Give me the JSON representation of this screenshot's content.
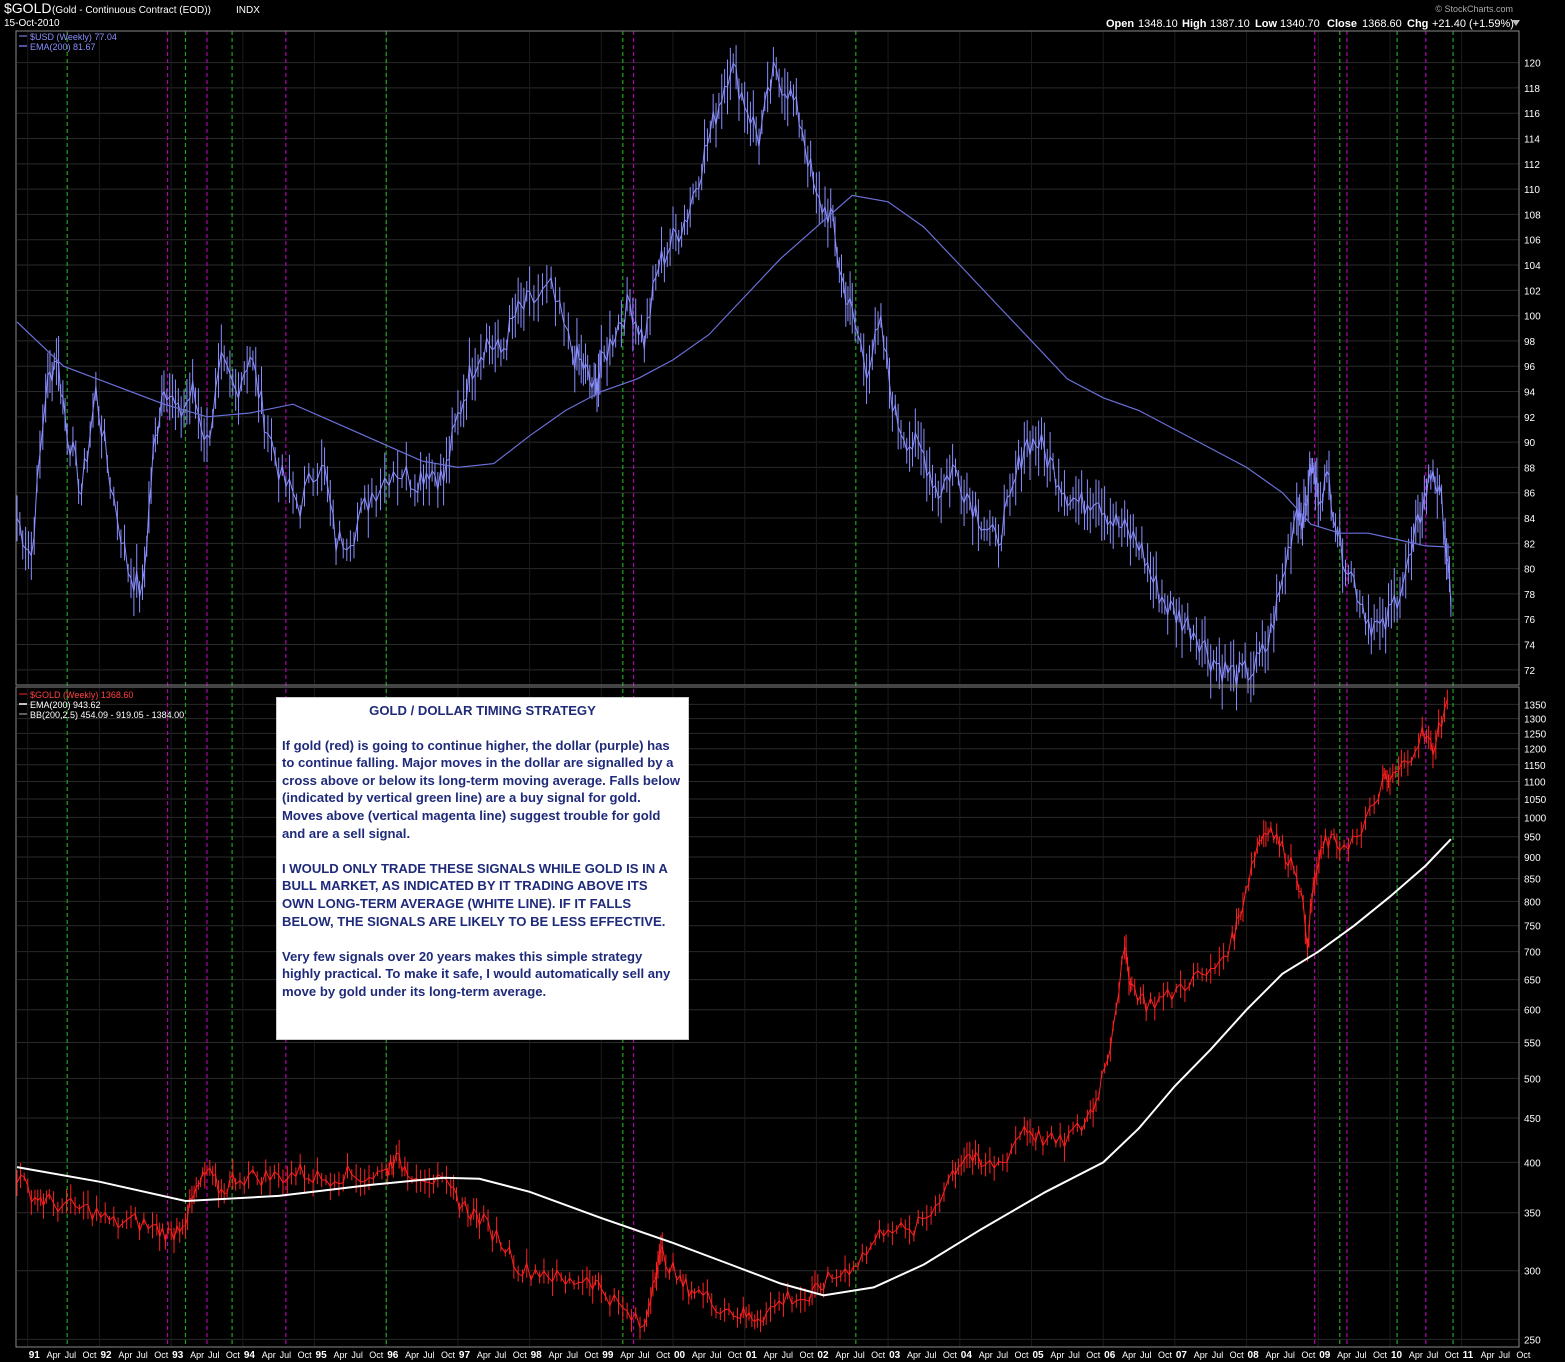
{
  "header": {
    "symbol": "$GOLD",
    "description": "(Gold - Continuous Contract (EOD))",
    "exchange": "INDX",
    "date": "15-Oct-2010",
    "watermark": "© StockCharts.com",
    "open_label": "Open",
    "open": "1348.10",
    "high_label": "High",
    "high": "1387.10",
    "low_label": "Low",
    "low": "1340.70",
    "close_label": "Close",
    "close": "1368.60",
    "chg_label": "Chg",
    "chg": "+21.40 (+1.59%)"
  },
  "colors": {
    "usd": "#8a8fff",
    "usd_ema": "#6b6fd8",
    "gold": "#ff2020",
    "gold_ema": "#ffffff",
    "buy_signal": "#1fa51f",
    "sell_signal": "#b000b0",
    "grid": "#2a2a2a"
  },
  "note": {
    "title": "GOLD / DOLLAR TIMING STRATEGY",
    "p1": "If gold (red) is going to continue higher, the dollar (purple) has to continue falling.  Major moves in the dollar are signalled by a cross above or below its long-term moving average.  Falls below (indicated by vertical green line) are a buy signal for gold.  Moves above (vertical magenta line) suggest trouble for gold and are a sell signal.",
    "p2": "I WOULD ONLY TRADE THESE SIGNALS WHILE GOLD IS IN A BULL MARKET, AS INDICATED BY IT TRADING ABOVE ITS OWN LONG-TERM AVERAGE (WHITE LINE).  IF IT FALLS BELOW, THE SIGNALS ARE LIKELY TO BE LESS EFFECTIVE.",
    "p3": "Very few signals over 20 years makes this simple strategy highly practical.  To make it safe, I would automatically sell any move by gold under its long-term average."
  },
  "chart_data": [
    {
      "type": "line",
      "panel": "top",
      "legend": [
        "$USD (Weekly) 77.04",
        "EMA(200) 81.67"
      ],
      "y_ticks": [
        72,
        74,
        76,
        78,
        80,
        82,
        84,
        86,
        88,
        90,
        92,
        94,
        96,
        98,
        100,
        102,
        104,
        106,
        108,
        110,
        112,
        114,
        116,
        118,
        120
      ],
      "ylim": [
        70.8,
        122.5
      ],
      "xlim": [
        1990.85,
        2011.8
      ],
      "series": [
        {
          "name": "$USD (Weekly)",
          "x": [
            1990.85,
            1991.05,
            1991.25,
            1991.4,
            1991.55,
            1991.75,
            1991.95,
            1992.15,
            1992.4,
            1992.6,
            1992.75,
            1992.9,
            1993.1,
            1993.3,
            1993.5,
            1993.7,
            1993.9,
            1994.1,
            1994.3,
            1994.55,
            1994.8,
            1995.1,
            1995.3,
            1995.55,
            1995.8,
            1996.1,
            1996.4,
            1996.6,
            1996.8,
            1997.0,
            1997.2,
            1997.4,
            1997.6,
            1997.8,
            1998.0,
            1998.3,
            1998.6,
            1998.75,
            1998.9,
            1999.0,
            1999.2,
            1999.4,
            1999.6,
            1999.8,
            2000.0,
            2000.2,
            2000.4,
            2000.6,
            2000.8,
            2001.0,
            2001.2,
            2001.4,
            2001.6,
            2001.8,
            2002.0,
            2002.2,
            2002.35,
            2002.5,
            2002.7,
            2002.9,
            2003.1,
            2003.3,
            2003.5,
            2003.7,
            2003.9,
            2004.1,
            2004.3,
            2004.5,
            2004.7,
            2004.9,
            2005.1,
            2005.3,
            2005.5,
            2005.7,
            2005.9,
            2006.1,
            2006.3,
            2006.5,
            2006.7,
            2006.9,
            2007.1,
            2007.3,
            2007.5,
            2007.7,
            2007.9,
            2008.1,
            2008.3,
            2008.5,
            2008.7,
            2008.8,
            2008.9,
            2009.0,
            2009.15,
            2009.3,
            2009.5,
            2009.7,
            2009.9,
            2010.1,
            2010.3,
            2010.45,
            2010.6,
            2010.75,
            2010.85
          ],
          "y": [
            84,
            81,
            94,
            97,
            91,
            86,
            94,
            87,
            80,
            78,
            89,
            95,
            92,
            94,
            90,
            96,
            94,
            97,
            92,
            87,
            85,
            89,
            82,
            83,
            86,
            88,
            87,
            88,
            87,
            92,
            96,
            98,
            97,
            100,
            101,
            102,
            97,
            96,
            94,
            96,
            99,
            101,
            98,
            104,
            106,
            108,
            112,
            116,
            120,
            117,
            114,
            119,
            118,
            115,
            109,
            108,
            103,
            100,
            96,
            99,
            92,
            90,
            89,
            86,
            88,
            86,
            84,
            82,
            85,
            90,
            90,
            88,
            86,
            85,
            86,
            84,
            83,
            82,
            79,
            77,
            76,
            75,
            73,
            72,
            71.5,
            72,
            74,
            79,
            85,
            84,
            88,
            86,
            87,
            82,
            79,
            76,
            75,
            78,
            81,
            85,
            88,
            84,
            77
          ]
        },
        {
          "name": "EMA(200)",
          "x": [
            1990.85,
            1991.5,
            1992.2,
            1992.9,
            1993.5,
            1994.1,
            1994.7,
            1995.3,
            1995.9,
            1996.5,
            1997.0,
            1997.5,
            1998.0,
            1998.5,
            1999.0,
            1999.5,
            2000.0,
            2000.5,
            2001.0,
            2001.5,
            2002.0,
            2002.5,
            2003.0,
            2003.5,
            2004.0,
            2004.5,
            2005.0,
            2005.5,
            2006.0,
            2006.5,
            2007.0,
            2007.5,
            2008.0,
            2008.5,
            2008.9,
            2009.3,
            2009.7,
            2010.1,
            2010.5,
            2010.85
          ],
          "y": [
            99.5,
            96,
            94.5,
            93,
            92,
            92.3,
            93,
            91.5,
            90,
            88.5,
            88,
            88.3,
            90.5,
            92.5,
            94,
            95,
            96.5,
            98.5,
            101.5,
            104.5,
            107,
            109.5,
            109,
            107,
            104,
            101,
            98,
            95,
            93.5,
            92.5,
            91,
            89.5,
            88,
            86,
            83.5,
            82.8,
            82.8,
            82.3,
            81.8,
            81.7
          ]
        }
      ],
      "buy_signals": [
        1991.55,
        1993.2,
        1993.85,
        1996.0,
        1999.3,
        2002.55,
        2009.3,
        2010.1,
        2010.88
      ],
      "sell_signals": [
        1992.95,
        1993.5,
        1994.6,
        1999.45,
        2008.95,
        2009.4,
        2010.5
      ]
    },
    {
      "type": "line",
      "panel": "bottom",
      "yscale": "log",
      "legend": [
        "$GOLD (Weekly) 1368.60",
        "EMA(200) 943.62",
        "BB(200,2.5) 454.09 - 919.05 - 1384.00"
      ],
      "y_ticks": [
        250,
        300,
        350,
        400,
        450,
        500,
        550,
        600,
        650,
        700,
        750,
        800,
        850,
        900,
        950,
        1000,
        1050,
        1100,
        1150,
        1200,
        1250,
        1300,
        1350
      ],
      "ylim": [
        245,
        1410
      ],
      "xlim": [
        1990.85,
        2011.8
      ],
      "x_axis_labels": [
        {
          "x": 1991.0,
          "t": "91"
        },
        {
          "x": 1991.25,
          "t": "Apr"
        },
        {
          "x": 1991.5,
          "t": "Jul"
        },
        {
          "x": 1991.75,
          "t": "Oct"
        },
        {
          "x": 1992.0,
          "t": "92"
        },
        {
          "x": 1992.25,
          "t": "Apr"
        },
        {
          "x": 1992.5,
          "t": "Jul"
        },
        {
          "x": 1992.75,
          "t": "Oct"
        },
        {
          "x": 1993.0,
          "t": "93"
        },
        {
          "x": 1993.25,
          "t": "Apr"
        },
        {
          "x": 1993.5,
          "t": "Jul"
        },
        {
          "x": 1993.75,
          "t": "Oct"
        },
        {
          "x": 1994.0,
          "t": "94"
        },
        {
          "x": 1994.25,
          "t": "Apr"
        },
        {
          "x": 1994.5,
          "t": "Jul"
        },
        {
          "x": 1994.75,
          "t": "Oct"
        },
        {
          "x": 1995.0,
          "t": "95"
        },
        {
          "x": 1995.25,
          "t": "Apr"
        },
        {
          "x": 1995.5,
          "t": "Jul"
        },
        {
          "x": 1995.75,
          "t": "Oct"
        },
        {
          "x": 1996.0,
          "t": "96"
        },
        {
          "x": 1996.25,
          "t": "Apr"
        },
        {
          "x": 1996.5,
          "t": "Jul"
        },
        {
          "x": 1996.75,
          "t": "Oct"
        },
        {
          "x": 1997.0,
          "t": "97"
        },
        {
          "x": 1997.25,
          "t": "Apr"
        },
        {
          "x": 1997.5,
          "t": "Jul"
        },
        {
          "x": 1997.75,
          "t": "Oct"
        },
        {
          "x": 1998.0,
          "t": "98"
        },
        {
          "x": 1998.25,
          "t": "Apr"
        },
        {
          "x": 1998.5,
          "t": "Jul"
        },
        {
          "x": 1998.75,
          "t": "Oct"
        },
        {
          "x": 1999.0,
          "t": "99"
        },
        {
          "x": 1999.25,
          "t": "Apr"
        },
        {
          "x": 1999.5,
          "t": "Jul"
        },
        {
          "x": 1999.75,
          "t": "Oct"
        },
        {
          "x": 2000.0,
          "t": "00"
        },
        {
          "x": 2000.25,
          "t": "Apr"
        },
        {
          "x": 2000.5,
          "t": "Jul"
        },
        {
          "x": 2000.75,
          "t": "Oct"
        },
        {
          "x": 2001.0,
          "t": "01"
        },
        {
          "x": 2001.25,
          "t": "Apr"
        },
        {
          "x": 2001.5,
          "t": "Jul"
        },
        {
          "x": 2001.75,
          "t": "Oct"
        },
        {
          "x": 2002.0,
          "t": "02"
        },
        {
          "x": 2002.25,
          "t": "Apr"
        },
        {
          "x": 2002.5,
          "t": "Jul"
        },
        {
          "x": 2002.75,
          "t": "Oct"
        },
        {
          "x": 2003.0,
          "t": "03"
        },
        {
          "x": 2003.25,
          "t": "Apr"
        },
        {
          "x": 2003.5,
          "t": "Jul"
        },
        {
          "x": 2003.75,
          "t": "Oct"
        },
        {
          "x": 2004.0,
          "t": "04"
        },
        {
          "x": 2004.25,
          "t": "Apr"
        },
        {
          "x": 2004.5,
          "t": "Jul"
        },
        {
          "x": 2004.75,
          "t": "Oct"
        },
        {
          "x": 2005.0,
          "t": "05"
        },
        {
          "x": 2005.25,
          "t": "Apr"
        },
        {
          "x": 2005.5,
          "t": "Jul"
        },
        {
          "x": 2005.75,
          "t": "Oct"
        },
        {
          "x": 2006.0,
          "t": "06"
        },
        {
          "x": 2006.25,
          "t": "Apr"
        },
        {
          "x": 2006.5,
          "t": "Jul"
        },
        {
          "x": 2006.75,
          "t": "Oct"
        },
        {
          "x": 2007.0,
          "t": "07"
        },
        {
          "x": 2007.25,
          "t": "Apr"
        },
        {
          "x": 2007.5,
          "t": "Jul"
        },
        {
          "x": 2007.75,
          "t": "Oct"
        },
        {
          "x": 2008.0,
          "t": "08"
        },
        {
          "x": 2008.25,
          "t": "Apr"
        },
        {
          "x": 2008.5,
          "t": "Jul"
        },
        {
          "x": 2008.75,
          "t": "Oct"
        },
        {
          "x": 2009.0,
          "t": "09"
        },
        {
          "x": 2009.25,
          "t": "Apr"
        },
        {
          "x": 2009.5,
          "t": "Jul"
        },
        {
          "x": 2009.75,
          "t": "Oct"
        },
        {
          "x": 2010.0,
          "t": "10"
        },
        {
          "x": 2010.25,
          "t": "Apr"
        },
        {
          "x": 2010.5,
          "t": "Jul"
        },
        {
          "x": 2010.75,
          "t": "Oct"
        },
        {
          "x": 2011.0,
          "t": "11"
        },
        {
          "x": 2011.25,
          "t": "Apr"
        },
        {
          "x": 2011.5,
          "t": "Jul"
        },
        {
          "x": 2011.75,
          "t": "Oct"
        }
      ],
      "series": [
        {
          "name": "$GOLD (Weekly)",
          "x": [
            1990.85,
            1991.1,
            1991.3,
            1991.6,
            1991.9,
            1992.2,
            1992.5,
            1992.8,
            1993.0,
            1993.2,
            1993.35,
            1993.5,
            1993.7,
            1993.9,
            1994.2,
            1994.5,
            1994.8,
            1995.1,
            1995.4,
            1995.7,
            1996.0,
            1996.1,
            1996.3,
            1996.6,
            1996.9,
            1997.1,
            1997.3,
            1997.6,
            1997.9,
            1998.2,
            1998.5,
            1998.8,
            1999.0,
            1999.3,
            1999.6,
            1999.75,
            1999.85,
            2000.1,
            2000.3,
            2000.6,
            2000.9,
            2001.1,
            2001.3,
            2001.6,
            2001.9,
            2002.1,
            2002.4,
            2002.7,
            2003.0,
            2003.3,
            2003.6,
            2003.9,
            2004.1,
            2004.3,
            2004.6,
            2004.9,
            2005.1,
            2005.4,
            2005.7,
            2005.9,
            2006.1,
            2006.3,
            2006.4,
            2006.6,
            2006.9,
            2007.2,
            2007.5,
            2007.8,
            2007.95,
            2008.15,
            2008.3,
            2008.5,
            2008.7,
            2008.85,
            2008.95,
            2009.1,
            2009.3,
            2009.6,
            2009.9,
            2010.0,
            2010.2,
            2010.45,
            2010.6,
            2010.8
          ],
          "y": [
            385,
            365,
            360,
            355,
            352,
            340,
            342,
            335,
            330,
            345,
            370,
            390,
            370,
            385,
            385,
            385,
            390,
            383,
            388,
            385,
            390,
            405,
            392,
            385,
            370,
            355,
            345,
            325,
            300,
            300,
            290,
            295,
            287,
            270,
            257,
            300,
            315,
            290,
            285,
            275,
            268,
            265,
            268,
            280,
            278,
            290,
            300,
            315,
            340,
            330,
            350,
            390,
            410,
            395,
            400,
            440,
            428,
            420,
            440,
            470,
            550,
            700,
            640,
            610,
            620,
            650,
            660,
            720,
            800,
            930,
            980,
            920,
            870,
            720,
            850,
            940,
            930,
            950,
            1100,
            1100,
            1150,
            1250,
            1200,
            1368
          ]
        },
        {
          "name": "EMA(200)",
          "x": [
            1990.85,
            1992.0,
            1993.2,
            1994.5,
            1995.8,
            1996.8,
            1997.3,
            1998.0,
            1999.0,
            2000.0,
            2000.8,
            2001.5,
            2002.1,
            2002.8,
            2003.5,
            2004.3,
            2005.2,
            2006.0,
            2006.5,
            2007.0,
            2007.5,
            2008.0,
            2008.5,
            2009.0,
            2009.5,
            2010.0,
            2010.5,
            2010.85
          ],
          "y": [
            395,
            380,
            361,
            366,
            377,
            384,
            383,
            370,
            345,
            323,
            305,
            290,
            281,
            287,
            305,
            335,
            370,
            400,
            438,
            490,
            540,
            600,
            660,
            700,
            750,
            810,
            880,
            943.62
          ]
        }
      ],
      "buy_signals": [
        1991.55,
        1993.2,
        1993.85,
        1996.0,
        1999.3,
        2002.55,
        2009.3,
        2010.1,
        2010.88
      ],
      "sell_signals": [
        1992.95,
        1993.5,
        1994.6,
        1999.45,
        2008.95,
        2009.4,
        2010.5
      ]
    }
  ]
}
